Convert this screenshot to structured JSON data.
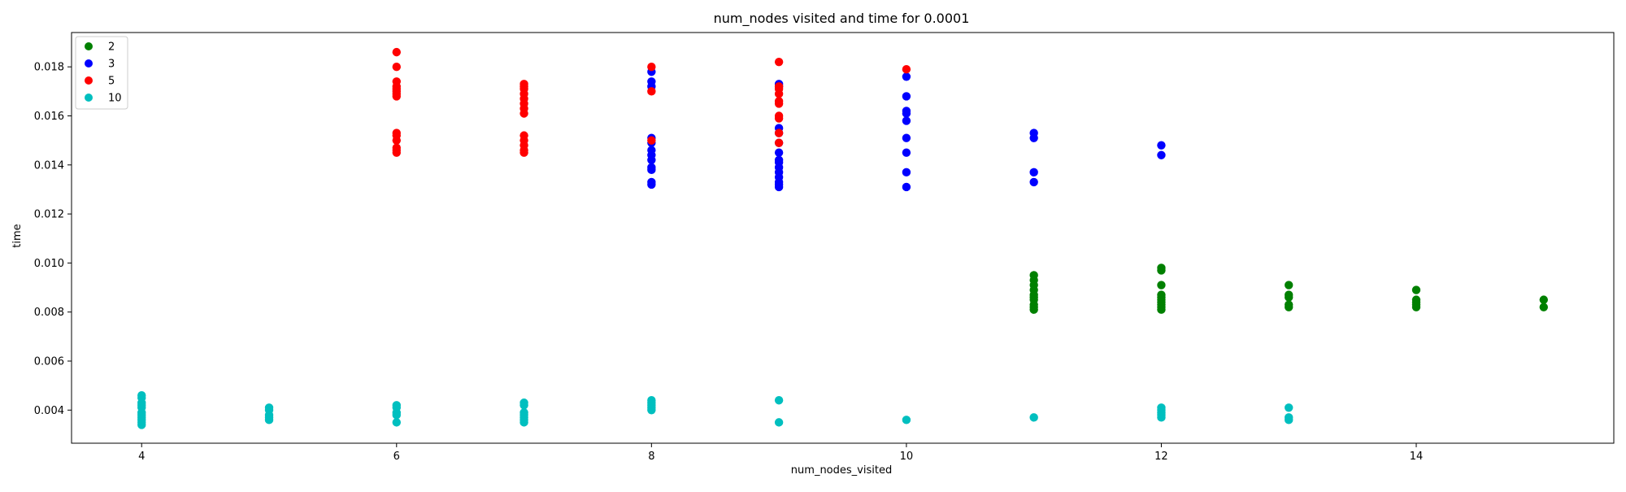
{
  "chart_data": {
    "type": "scatter",
    "title": "num_nodes visited and time for 0.0001",
    "xlabel": "num_nodes_visited",
    "ylabel": "time",
    "xlim": [
      3.45,
      15.55
    ],
    "ylim": [
      0.00265,
      0.0194
    ],
    "xticks": [
      4,
      6,
      8,
      10,
      12,
      14
    ],
    "xtick_labels": [
      "4",
      "6",
      "8",
      "10",
      "12",
      "14"
    ],
    "yticks": [
      0.004,
      0.006,
      0.008,
      0.01,
      0.012,
      0.014,
      0.016,
      0.018
    ],
    "ytick_labels": [
      "0.004",
      "0.006",
      "0.008",
      "0.010",
      "0.012",
      "0.014",
      "0.016",
      "0.018"
    ],
    "grid": false,
    "legend": {
      "position": "top-left"
    },
    "series": [
      {
        "name": "2",
        "color": "#008000",
        "points": [
          [
            11,
            0.0095
          ],
          [
            11,
            0.0093
          ],
          [
            11,
            0.0091
          ],
          [
            11,
            0.0089
          ],
          [
            11,
            0.0087
          ],
          [
            11,
            0.0086
          ],
          [
            11,
            0.0085
          ],
          [
            11,
            0.0083
          ],
          [
            11,
            0.0082
          ],
          [
            11,
            0.0081
          ],
          [
            12,
            0.0098
          ],
          [
            12,
            0.0097
          ],
          [
            12,
            0.0091
          ],
          [
            12,
            0.0087
          ],
          [
            12,
            0.0086
          ],
          [
            12,
            0.0085
          ],
          [
            12,
            0.0084
          ],
          [
            12,
            0.0083
          ],
          [
            12,
            0.0082
          ],
          [
            12,
            0.0081
          ],
          [
            13,
            0.0091
          ],
          [
            13,
            0.0087
          ],
          [
            13,
            0.0086
          ],
          [
            13,
            0.0083
          ],
          [
            13,
            0.0082
          ],
          [
            14,
            0.0089
          ],
          [
            14,
            0.0085
          ],
          [
            14,
            0.0084
          ],
          [
            14,
            0.0083
          ],
          [
            14,
            0.0082
          ],
          [
            15,
            0.0085
          ],
          [
            15,
            0.0082
          ]
        ]
      },
      {
        "name": "3",
        "color": "#0000ff",
        "points": [
          [
            8,
            0.0178
          ],
          [
            8,
            0.0174
          ],
          [
            8,
            0.0172
          ],
          [
            8,
            0.0151
          ],
          [
            8,
            0.0149
          ],
          [
            8,
            0.0146
          ],
          [
            8,
            0.0144
          ],
          [
            8,
            0.0142
          ],
          [
            8,
            0.0139
          ],
          [
            8,
            0.0138
          ],
          [
            8,
            0.0133
          ],
          [
            8,
            0.0132
          ],
          [
            9,
            0.0173
          ],
          [
            9,
            0.0172
          ],
          [
            9,
            0.0155
          ],
          [
            9,
            0.0153
          ],
          [
            9,
            0.0149
          ],
          [
            9,
            0.0145
          ],
          [
            9,
            0.0142
          ],
          [
            9,
            0.0141
          ],
          [
            9,
            0.0139
          ],
          [
            9,
            0.0137
          ],
          [
            9,
            0.0135
          ],
          [
            9,
            0.0133
          ],
          [
            9,
            0.0132
          ],
          [
            9,
            0.0131
          ],
          [
            10,
            0.0176
          ],
          [
            10,
            0.0168
          ],
          [
            10,
            0.0162
          ],
          [
            10,
            0.0161
          ],
          [
            10,
            0.0158
          ],
          [
            10,
            0.0151
          ],
          [
            10,
            0.0145
          ],
          [
            10,
            0.0137
          ],
          [
            10,
            0.0131
          ],
          [
            11,
            0.0153
          ],
          [
            11,
            0.0151
          ],
          [
            11,
            0.0137
          ],
          [
            11,
            0.0133
          ],
          [
            12,
            0.0148
          ],
          [
            12,
            0.0144
          ]
        ]
      },
      {
        "name": "5",
        "color": "#ff0000",
        "points": [
          [
            6,
            0.0186
          ],
          [
            6,
            0.018
          ],
          [
            6,
            0.0174
          ],
          [
            6,
            0.0172
          ],
          [
            6,
            0.0171
          ],
          [
            6,
            0.017
          ],
          [
            6,
            0.0169
          ],
          [
            6,
            0.0168
          ],
          [
            6,
            0.0153
          ],
          [
            6,
            0.0152
          ],
          [
            6,
            0.015
          ],
          [
            6,
            0.0147
          ],
          [
            6,
            0.0146
          ],
          [
            6,
            0.0145
          ],
          [
            7,
            0.0173
          ],
          [
            7,
            0.0172
          ],
          [
            7,
            0.0171
          ],
          [
            7,
            0.0169
          ],
          [
            7,
            0.0167
          ],
          [
            7,
            0.0165
          ],
          [
            7,
            0.0163
          ],
          [
            7,
            0.0161
          ],
          [
            7,
            0.0152
          ],
          [
            7,
            0.015
          ],
          [
            7,
            0.0148
          ],
          [
            7,
            0.0146
          ],
          [
            7,
            0.0145
          ],
          [
            8,
            0.018
          ],
          [
            8,
            0.017
          ],
          [
            8,
            0.015
          ],
          [
            9,
            0.0182
          ],
          [
            9,
            0.0172
          ],
          [
            9,
            0.0171
          ],
          [
            9,
            0.0169
          ],
          [
            9,
            0.0166
          ],
          [
            9,
            0.0165
          ],
          [
            9,
            0.016
          ],
          [
            9,
            0.0159
          ],
          [
            9,
            0.0153
          ],
          [
            9,
            0.0149
          ],
          [
            10,
            0.0179
          ]
        ]
      },
      {
        "name": "10",
        "color": "#00bfbf",
        "points": [
          [
            4,
            0.0046
          ],
          [
            4,
            0.0045
          ],
          [
            4,
            0.0043
          ],
          [
            4,
            0.0042
          ],
          [
            4,
            0.0041
          ],
          [
            4,
            0.0039
          ],
          [
            4,
            0.0038
          ],
          [
            4,
            0.0037
          ],
          [
            4,
            0.0036
          ],
          [
            4,
            0.0035
          ],
          [
            4,
            0.0034
          ],
          [
            5,
            0.0041
          ],
          [
            5,
            0.004
          ],
          [
            5,
            0.0038
          ],
          [
            5,
            0.0037
          ],
          [
            5,
            0.0036
          ],
          [
            6,
            0.0042
          ],
          [
            6,
            0.0041
          ],
          [
            6,
            0.0039
          ],
          [
            6,
            0.0038
          ],
          [
            6,
            0.0035
          ],
          [
            7,
            0.0043
          ],
          [
            7,
            0.0042
          ],
          [
            7,
            0.0039
          ],
          [
            7,
            0.0038
          ],
          [
            7,
            0.0037
          ],
          [
            7,
            0.0036
          ],
          [
            7,
            0.0035
          ],
          [
            8,
            0.0044
          ],
          [
            8,
            0.0043
          ],
          [
            8,
            0.0042
          ],
          [
            8,
            0.0041
          ],
          [
            8,
            0.004
          ],
          [
            9,
            0.0044
          ],
          [
            9,
            0.0035
          ],
          [
            10,
            0.0036
          ],
          [
            11,
            0.0037
          ],
          [
            12,
            0.0041
          ],
          [
            12,
            0.004
          ],
          [
            12,
            0.0039
          ],
          [
            12,
            0.0038
          ],
          [
            12,
            0.0037
          ],
          [
            13,
            0.0041
          ],
          [
            13,
            0.0037
          ],
          [
            13,
            0.0036
          ]
        ]
      }
    ]
  }
}
